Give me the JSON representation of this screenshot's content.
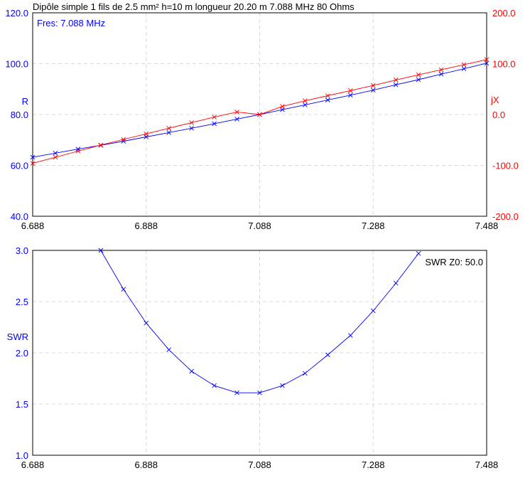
{
  "chart_data": [
    {
      "type": "line",
      "title": "Dipôle simple 1 fils de 2.5 mm² h=10 m longueur 20.20 m 7.088 MHz 80 Ohms",
      "annotation": "Fres: 7.088 MHz",
      "xlim": [
        6.688,
        7.488
      ],
      "x_ticks": [
        "6.688",
        "6.888",
        "7.088",
        "7.288",
        "7.488"
      ],
      "left_axis": {
        "label": "R",
        "ylim": [
          40,
          120
        ],
        "ticks": [
          "40.0",
          "60.0",
          "80.0",
          "100.0",
          "120.0"
        ],
        "color": "#0000ff"
      },
      "right_axis": {
        "label": "jX",
        "ylim": [
          -200,
          200
        ],
        "ticks": [
          "-200.0",
          "-100.0",
          "0.0",
          "100.0",
          "200.0"
        ],
        "color": "#ff0000"
      },
      "grid": true,
      "x": [
        6.688,
        6.728,
        6.768,
        6.808,
        6.848,
        6.888,
        6.928,
        6.968,
        7.008,
        7.048,
        7.088,
        7.128,
        7.168,
        7.208,
        7.248,
        7.288,
        7.328,
        7.368,
        7.408,
        7.448,
        7.488
      ],
      "series": [
        {
          "name": "R",
          "axis": "left",
          "color": "#0000ff",
          "values": [
            63.2,
            64.8,
            66.4,
            67.9,
            69.5,
            71.2,
            72.9,
            74.6,
            76.4,
            78.2,
            80.0,
            81.9,
            83.8,
            85.7,
            87.6,
            89.6,
            91.7,
            93.7,
            95.9,
            98.0,
            100.2
          ]
        },
        {
          "name": "jX",
          "axis": "right",
          "color": "#ff0000",
          "values": [
            -96,
            -84,
            -72,
            -60,
            -49,
            -38,
            -27,
            -16,
            -5,
            5,
            0,
            16,
            27,
            37,
            47,
            57,
            68,
            78,
            88,
            98,
            108
          ]
        }
      ]
    },
    {
      "type": "line",
      "annotation": "SWR Z0: 50.0",
      "xlim": [
        6.688,
        7.488
      ],
      "x_ticks": [
        "6.688",
        "6.888",
        "7.088",
        "7.288",
        "7.488"
      ],
      "left_axis": {
        "label": "SWR",
        "ylim": [
          1.0,
          3.0
        ],
        "ticks": [
          "1.0",
          "1.5",
          "2.0",
          "2.5",
          "3.0"
        ],
        "color": "#0000ff"
      },
      "grid": true,
      "x": [
        6.808,
        6.848,
        6.888,
        6.928,
        6.968,
        7.008,
        7.048,
        7.088,
        7.128,
        7.168,
        7.208,
        7.248,
        7.288,
        7.328,
        7.368
      ],
      "series": [
        {
          "name": "SWR",
          "color": "#0000ff",
          "values": [
            3.0,
            2.62,
            2.29,
            2.03,
            1.82,
            1.68,
            1.61,
            1.61,
            1.68,
            1.8,
            1.98,
            2.17,
            2.41,
            2.68,
            2.97
          ]
        }
      ]
    }
  ]
}
